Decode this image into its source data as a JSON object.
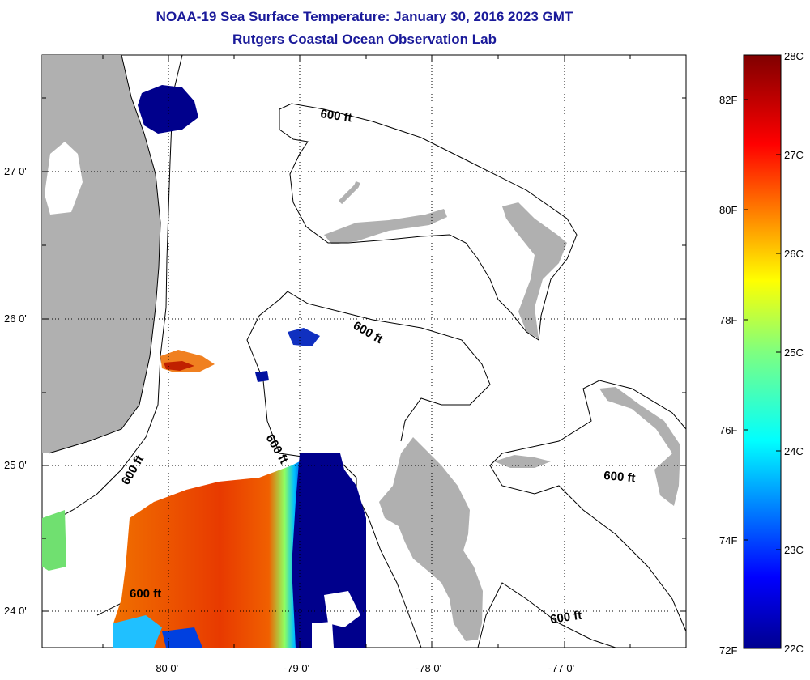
{
  "title": {
    "line1": "NOAA-19 Sea Surface Temperature:  January 30, 2016 2023 GMT",
    "line2": "Rutgers Coastal Ocean Observation Lab"
  },
  "map": {
    "longitude_labels": [
      "-80 0'",
      "-79 0'",
      "-78 0'",
      "-77 0'"
    ],
    "latitude_labels": [
      "27 0'",
      "26 0'",
      "25 0'",
      "24 0'"
    ],
    "contour_labels": [
      "600 ft",
      "600 ft",
      "600 ft",
      "600 ft",
      "600 ft",
      "600 ft"
    ],
    "colors": {
      "land": "#b0b0b0",
      "cold": "#00008c",
      "warm": "#e03c00",
      "contour": "#000000"
    }
  },
  "colorbar": {
    "celsius_labels": [
      "28C",
      "27C",
      "26C",
      "25C",
      "24C",
      "23C",
      "22C"
    ],
    "fahrenheit_labels": [
      "82F",
      "80F",
      "78F",
      "76F",
      "74F",
      "72F"
    ]
  }
}
